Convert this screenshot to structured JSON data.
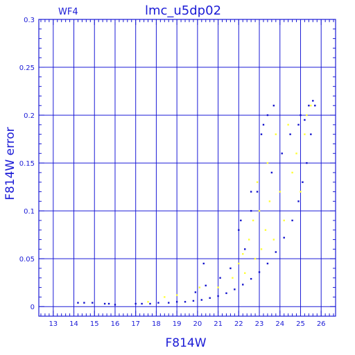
{
  "chart_data": {
    "type": "scatter",
    "title": "lmc_u5dp02",
    "panel_label": "WF4",
    "xlabel": "F814W",
    "ylabel": "F814W error",
    "xlim": [
      12.3,
      26.7
    ],
    "ylim": [
      -0.01,
      0.3
    ],
    "xticks": [
      13,
      14,
      15,
      16,
      17,
      18,
      19,
      20,
      21,
      22,
      23,
      24,
      25,
      26
    ],
    "yticks": [
      0,
      0.05,
      0.1,
      0.15,
      0.2,
      0.25,
      0.3
    ],
    "ytick_labels": [
      "0",
      "0.05",
      "0.1",
      "0.15",
      "0.2",
      "0.25",
      "0.3"
    ],
    "grid": true,
    "colors": {
      "axis": "#1a1ad6",
      "grid": "#1a1ad6",
      "main_series": "#1111cc",
      "highlight_series": "#ffff33",
      "background": "#ffffff"
    },
    "series": [
      {
        "color": "#1111cc",
        "points": [
          [
            14.2,
            0.004
          ],
          [
            14.5,
            0.004
          ],
          [
            14.9,
            0.004
          ],
          [
            15.5,
            0.003
          ],
          [
            15.7,
            0.003
          ],
          [
            16.0,
            0.002
          ],
          [
            17.0,
            0.003
          ],
          [
            17.3,
            0.003
          ],
          [
            17.7,
            0.003
          ],
          [
            18.1,
            0.004
          ],
          [
            18.6,
            0.004
          ],
          [
            19.0,
            0.005
          ],
          [
            19.4,
            0.005
          ],
          [
            19.8,
            0.006
          ],
          [
            20.2,
            0.007
          ],
          [
            20.6,
            0.009
          ],
          [
            21.0,
            0.011
          ],
          [
            21.4,
            0.014
          ],
          [
            21.8,
            0.018
          ],
          [
            22.2,
            0.023
          ],
          [
            22.6,
            0.029
          ],
          [
            23.0,
            0.036
          ],
          [
            23.4,
            0.045
          ],
          [
            23.8,
            0.057
          ],
          [
            24.2,
            0.072
          ],
          [
            24.6,
            0.09
          ],
          [
            24.9,
            0.11
          ],
          [
            25.1,
            0.13
          ],
          [
            25.3,
            0.15
          ],
          [
            25.5,
            0.18
          ],
          [
            25.7,
            0.21
          ],
          [
            19.9,
            0.015
          ],
          [
            20.4,
            0.022
          ],
          [
            20.3,
            0.045
          ],
          [
            21.1,
            0.03
          ],
          [
            21.6,
            0.04
          ],
          [
            22.0,
            0.08
          ],
          [
            22.1,
            0.09
          ],
          [
            22.3,
            0.06
          ],
          [
            22.6,
            0.1
          ],
          [
            22.6,
            0.12
          ],
          [
            22.9,
            0.12
          ],
          [
            23.1,
            0.18
          ],
          [
            23.2,
            0.19
          ],
          [
            23.4,
            0.2
          ],
          [
            23.6,
            0.14
          ],
          [
            23.7,
            0.21
          ],
          [
            24.1,
            0.16
          ],
          [
            24.5,
            0.18
          ],
          [
            24.9,
            0.19
          ],
          [
            25.0,
            0.2
          ],
          [
            25.2,
            0.195
          ],
          [
            25.4,
            0.21
          ],
          [
            25.6,
            0.215
          ]
        ]
      },
      {
        "color": "#ffff33",
        "points": [
          [
            17.6,
            0.005
          ],
          [
            18.4,
            0.01
          ],
          [
            19.0,
            0.012
          ],
          [
            20.1,
            0.02
          ],
          [
            21.0,
            0.02
          ],
          [
            21.7,
            0.03
          ],
          [
            22.0,
            0.045
          ],
          [
            22.2,
            0.055
          ],
          [
            22.3,
            0.035
          ],
          [
            22.5,
            0.07
          ],
          [
            22.7,
            0.09
          ],
          [
            22.8,
            0.05
          ],
          [
            22.9,
            0.13
          ],
          [
            23.0,
            0.1
          ],
          [
            23.1,
            0.06
          ],
          [
            23.3,
            0.08
          ],
          [
            23.4,
            0.15
          ],
          [
            23.5,
            0.11
          ],
          [
            23.7,
            0.07
          ],
          [
            23.8,
            0.18
          ],
          [
            24.0,
            0.12
          ],
          [
            24.2,
            0.09
          ],
          [
            24.4,
            0.19
          ],
          [
            24.6,
            0.14
          ],
          [
            24.8,
            0.16
          ],
          [
            25.0,
            0.12
          ],
          [
            25.2,
            0.18
          ],
          [
            25.3,
            0.2
          ],
          [
            25.5,
            0.21
          ]
        ]
      }
    ]
  }
}
